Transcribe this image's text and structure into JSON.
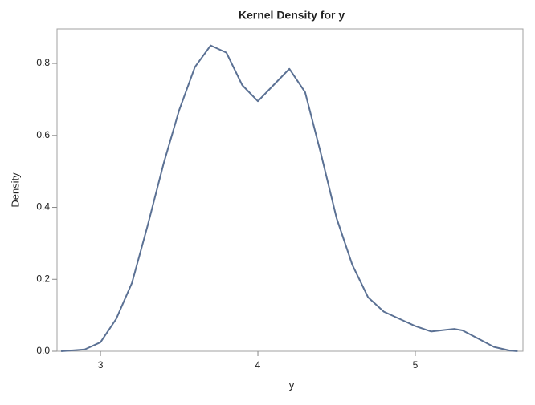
{
  "chart_data": {
    "type": "line",
    "title": "Kernel Density for y",
    "xlabel": "y",
    "ylabel": "Density",
    "x": [
      2.75,
      2.9,
      3.0,
      3.1,
      3.2,
      3.3,
      3.4,
      3.5,
      3.6,
      3.7,
      3.8,
      3.9,
      4.0,
      4.1,
      4.2,
      4.3,
      4.4,
      4.5,
      4.6,
      4.7,
      4.8,
      4.9,
      5.0,
      5.1,
      5.2,
      5.25,
      5.3,
      5.4,
      5.5,
      5.6,
      5.65
    ],
    "series": [
      {
        "name": "y",
        "color": "#5b7194",
        "values": [
          0.0,
          0.005,
          0.025,
          0.09,
          0.19,
          0.35,
          0.52,
          0.67,
          0.79,
          0.85,
          0.83,
          0.74,
          0.695,
          0.74,
          0.785,
          0.72,
          0.55,
          0.37,
          0.24,
          0.15,
          0.11,
          0.09,
          0.07,
          0.055,
          0.06,
          0.062,
          0.058,
          0.035,
          0.012,
          0.002,
          0.0
        ]
      }
    ],
    "xlim": [
      2.724,
      5.684
    ],
    "ylim": [
      0,
      0.896
    ],
    "xticks": [
      3,
      4,
      5
    ],
    "yticks": [
      {
        "value": 0,
        "label": "0.0"
      },
      0.2,
      0.4,
      0.6,
      0.8
    ]
  }
}
